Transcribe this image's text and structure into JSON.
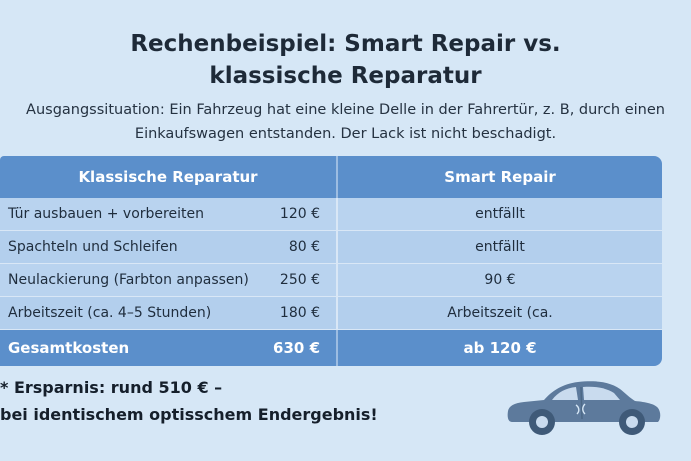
{
  "title": {
    "line1": "Rechenbeispiel: Smart Repair vs.",
    "line2": "klassische Reparatur"
  },
  "intro": {
    "line1": "Ausgangssituation: Ein Fahrzeug hat eine kleine Delle in der Fahrertür, z. B, durch einen",
    "line2": "Einkaufswagen entstanden. Der Lack ist nicht beschadigt."
  },
  "table": {
    "headers": {
      "classic": "Klassische Reparatur",
      "smart": "Smart Repair"
    },
    "rows": [
      {
        "item": "Tür ausbauen + vorbereiten",
        "cost": "120 €",
        "smart": "entfällt"
      },
      {
        "item": "Spachteln und Schleifen",
        "cost": "80 €",
        "smart": "entfällt"
      },
      {
        "item": "Neulackierung (Farbton anpassen)",
        "cost": "250 €",
        "smart": "90 €"
      },
      {
        "item": "Arbeitszeit (ca. 4–5 Stunden)",
        "cost": "180 €",
        "smart": "Arbeitszeit (ca."
      }
    ],
    "total": {
      "label": "Gesamtkosten",
      "cost": "630 €",
      "smart": "ab 120 €"
    }
  },
  "savings": {
    "line1": "* Ersparnis: rund 510 € –",
    "line2": "bei identischem optisschem Endergebnis!"
  },
  "icons": {
    "car": "car-icon"
  },
  "colors": {
    "background": "#d6e7f6",
    "header": "#5b8fcb",
    "row": "#b9d3ef",
    "car": "#5d7a9c"
  }
}
